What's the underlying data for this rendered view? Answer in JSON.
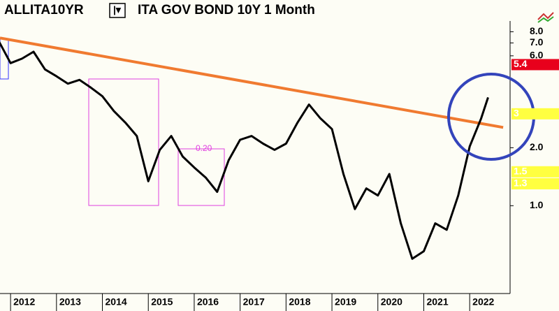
{
  "chart_data": {
    "type": "line",
    "symbol": "ALLITA10YR",
    "title": "ITA GOV BOND 10Y",
    "period": "1 Month",
    "annotation": "0.20",
    "log_y": true,
    "grid": false,
    "x": [
      2011.75,
      2012.0,
      2012.25,
      2012.5,
      2012.75,
      2013.0,
      2013.25,
      2013.5,
      2013.75,
      2014.0,
      2014.25,
      2014.5,
      2014.75,
      2015.0,
      2015.25,
      2015.5,
      2015.75,
      2016.0,
      2016.25,
      2016.5,
      2016.75,
      2017.0,
      2017.25,
      2017.5,
      2017.75,
      2018.0,
      2018.25,
      2018.5,
      2018.75,
      2019.0,
      2019.25,
      2019.5,
      2019.75,
      2020.0,
      2020.25,
      2020.5,
      2020.75,
      2021.0,
      2021.25,
      2021.5,
      2021.75,
      2022.0,
      2022.25,
      2022.4
    ],
    "series": [
      {
        "name": "ALLITA10YR",
        "color": "#000000",
        "values": [
          7.1,
          5.5,
          5.8,
          6.3,
          5.1,
          4.7,
          4.3,
          4.5,
          4.1,
          3.7,
          3.1,
          2.7,
          2.3,
          1.34,
          1.95,
          2.3,
          1.8,
          1.58,
          1.4,
          1.18,
          1.72,
          2.2,
          2.3,
          2.1,
          1.95,
          2.1,
          2.7,
          3.35,
          2.84,
          2.5,
          1.46,
          0.96,
          1.23,
          1.13,
          1.46,
          0.81,
          0.53,
          0.58,
          0.81,
          0.75,
          1.13,
          2.03,
          2.84,
          3.65
        ]
      }
    ],
    "trendline": {
      "x": [
        2011.77,
        2022.73
      ],
      "values": [
        7.43,
        2.55
      ],
      "color": "#f07a30"
    },
    "price_flags": [
      {
        "value": 5.4,
        "color": "#e8001c"
      },
      {
        "value": 3,
        "color": "#ffff40"
      },
      {
        "value": 1.5,
        "color": "#ffff40"
      },
      {
        "value": 1.3,
        "color": "#ffff40"
      }
    ],
    "xlim": [
      2011.77,
      2022.88
    ],
    "xticks": [
      2012,
      2013,
      2014,
      2015,
      2016,
      2017,
      2018,
      2019,
      2020,
      2021,
      2022
    ],
    "ylim": [
      0.35,
      9.1
    ],
    "yticks": [
      {
        "value": 1,
        "label": "1.0"
      },
      {
        "value": 2,
        "label": "2.0"
      },
      {
        "value": 6,
        "label": "6.0"
      },
      {
        "value": 7,
        "label": "7.0"
      },
      {
        "value": 8,
        "label": "8.0"
      }
    ]
  }
}
